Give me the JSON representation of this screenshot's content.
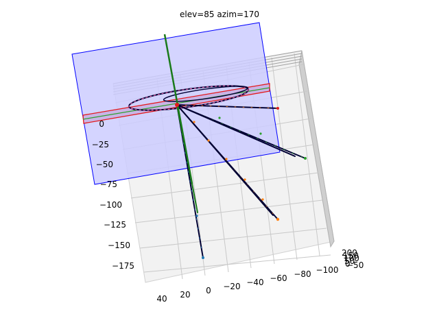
{
  "chart_data": {
    "type": "scatter",
    "title": "elev=85 azim=170",
    "view": {
      "elev": 85,
      "azim": 170
    },
    "axes": {
      "y_ticks_left": [
        "0",
        "−25",
        "−50",
        "−75",
        "−100",
        "−125",
        "−150",
        "−175"
      ],
      "x_ticks_bottom": [
        "40",
        "20",
        "0",
        "−20",
        "−40",
        "−60",
        "−80",
        "−100"
      ],
      "z_ticks_right": [
        "200",
        "150",
        "100",
        "50",
        "0",
        "−50"
      ]
    },
    "colors": {
      "plane_fill": "#ccccff",
      "plane_edge": "#0000ff",
      "ring_band": "#e31a1c",
      "ring_line": "#2ca02c",
      "vertical_line": "#1a7a1a",
      "trajectory": "#000033",
      "markers_orange": "#ff7f0e",
      "markers_green": "#2ca02c",
      "markers_blue": "#1f77b4",
      "ellipse_pink": "#ff69b4"
    },
    "series_notes": [
      "trajectories",
      "ellipse orbit",
      "vertical trajectory"
    ]
  }
}
